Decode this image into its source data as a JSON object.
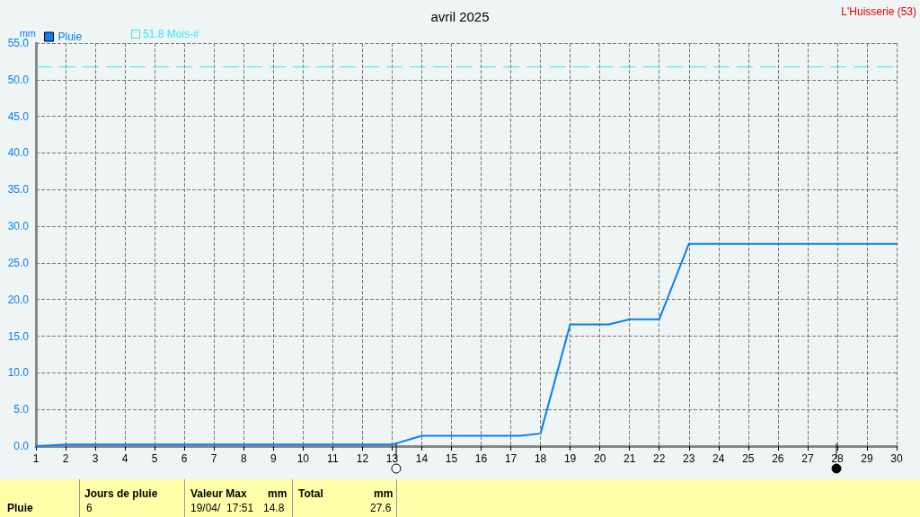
{
  "chart_data": {
    "type": "line",
    "title": "avril 2025",
    "ylabel": "mm",
    "annotations": [
      "L'Huisserie (53)",
      "Pluie",
      "Jours de pluie",
      "6",
      "Valeur Max",
      "mm",
      "19/04/  17:51",
      "14.8",
      "Total",
      "mm",
      "27.6"
    ],
    "x": [
      1,
      1.5,
      2,
      13,
      14,
      17.3,
      18,
      19,
      20.3,
      21,
      22,
      23,
      30
    ],
    "series": [
      {
        "name": "Pluie",
        "color": "#0a7ff0",
        "values": [
          0,
          0.1,
          0.2,
          0.2,
          1.4,
          1.4,
          1.7,
          16.6,
          16.6,
          17.3,
          17.3,
          27.6,
          27.6
        ]
      }
    ],
    "xlim": [
      1,
      30
    ],
    "xticks": [
      1,
      2,
      3,
      4,
      5,
      6,
      7,
      8,
      9,
      10,
      11,
      12,
      13,
      14,
      15,
      16,
      17,
      18,
      19,
      20,
      21,
      22,
      23,
      24,
      25,
      26,
      27,
      28,
      29,
      30
    ],
    "ylim": [
      0,
      55
    ],
    "yticks": [
      {
        "value": 0,
        "label": "0.0"
      },
      {
        "value": 5,
        "label": "5.0"
      },
      {
        "value": 10,
        "label": "10.0"
      },
      {
        "value": 15,
        "label": "15.0"
      },
      {
        "value": 20,
        "label": "20.0"
      },
      {
        "value": 25,
        "label": "25.0"
      },
      {
        "value": 30,
        "label": "30.0"
      },
      {
        "value": 35,
        "label": "35.0"
      },
      {
        "value": 40,
        "label": "40.0"
      },
      {
        "value": 45,
        "label": "45.0"
      },
      {
        "value": 50,
        "label": "50.0"
      },
      {
        "value": 55,
        "label": "55.0"
      }
    ],
    "ref_lines": [
      {
        "axis": "y",
        "value": 51.8,
        "label": "51.8 Mois-#",
        "color": "#33e8f0",
        "line_style": "dashed"
      }
    ],
    "grid": true,
    "legend": "top left",
    "marker": "none",
    "line_style": "solid"
  }
}
